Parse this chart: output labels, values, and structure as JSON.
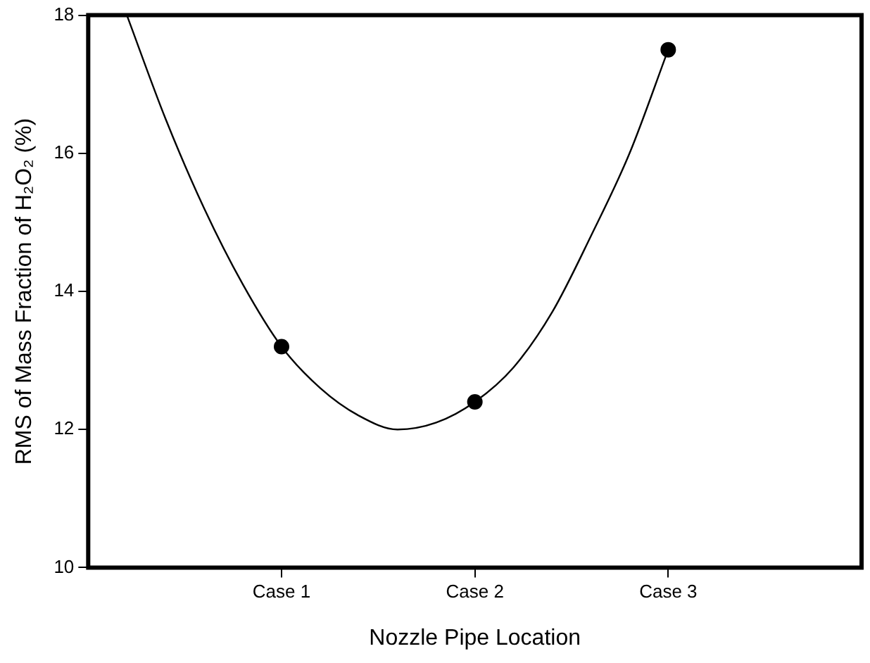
{
  "chart_data": {
    "type": "line",
    "xlabel": "Nozzle Pipe Location",
    "ylabel": "RMS of Mass Fraction of H₂O₂ (%)",
    "categories": [
      null,
      null,
      null,
      null,
      null,
      "Case 1",
      null,
      null,
      null,
      null,
      "Case 2",
      null,
      null,
      null,
      null,
      "Case 3",
      null,
      null,
      null,
      null,
      null
    ],
    "ylim": [
      10,
      18
    ],
    "yticks": [
      10,
      12,
      14,
      16,
      18
    ],
    "grid": false,
    "legend": false,
    "series": [
      {
        "type": "scatter",
        "marker": "circle",
        "color": "#000000",
        "values": [
          null,
          null,
          null,
          null,
          null,
          13.2,
          null,
          null,
          null,
          null,
          12.4,
          null,
          null,
          null,
          null,
          17.5,
          null,
          null,
          null,
          null,
          null
        ]
      },
      {
        "marker": "none",
        "line_style": "solid",
        "color": "#000000",
        "values": [
          null,
          18.0,
          16.5,
          15.2,
          14.1,
          13.2,
          12.6,
          12.2,
          12.0,
          12.1,
          12.4,
          12.9,
          13.7,
          14.8,
          16.0,
          17.5,
          null,
          null,
          null,
          null,
          null
        ]
      }
    ]
  }
}
